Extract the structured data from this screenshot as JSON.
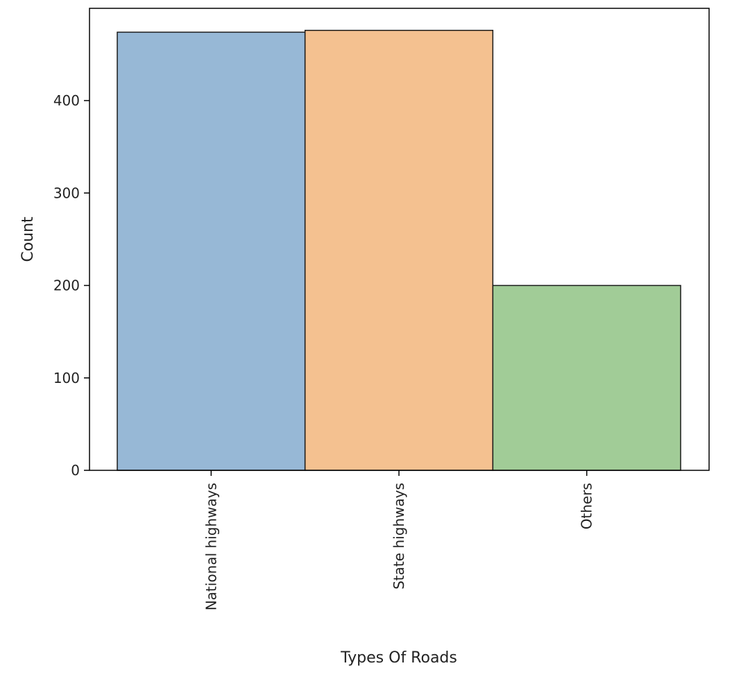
{
  "chart_data": {
    "type": "bar",
    "title": "",
    "xlabel": "Types Of Roads",
    "ylabel": "Count",
    "categories": [
      "National highways",
      "State highways",
      "Others"
    ],
    "values": [
      474,
      476,
      200
    ],
    "colors": [
      "#97b8d6",
      "#f4c190",
      "#a1cc97"
    ],
    "edge_color": "#1a1a1a",
    "ylim": [
      0,
      500
    ],
    "yticks": [
      0,
      100,
      200,
      300,
      400
    ],
    "grid": false,
    "legend": "none"
  }
}
